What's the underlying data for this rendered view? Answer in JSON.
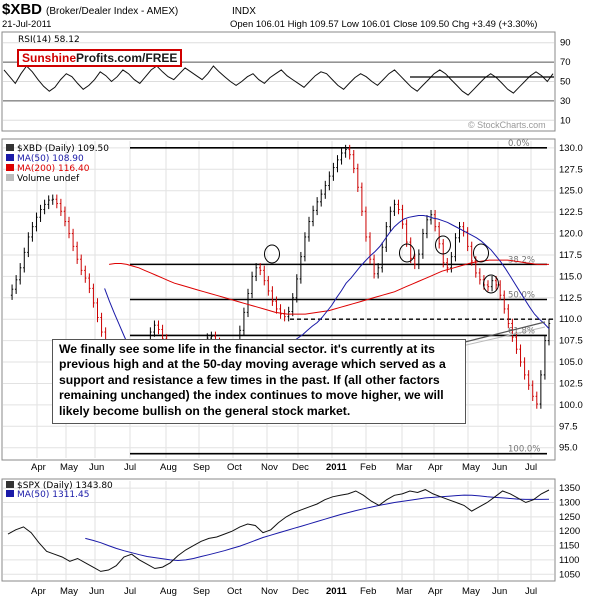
{
  "header": {
    "symbol": "$XBD",
    "name": "(Broker/Dealer Index - AMEX)",
    "exchange": "INDX",
    "date": "21-Jul-2011",
    "ohlc": "Open 106.01 High 109.57 Low 106.01 Close 109.50 Chg +3.49 (+3.30%)",
    "watermark": "© StockCharts.com"
  },
  "brand": {
    "part1": "Sunshine",
    "part2": "Profits.com/FREE"
  },
  "annotation": "We finally see some life in the financial sector. it's currently at its previous high and at the 50-day moving average which served as a support and resistance a few times in the past. If (all other factors remaining unchanged) the index continues to move higher, we will likely become bullish on the general stock market.",
  "colors": {
    "price_up": "#000000",
    "price_down": "#cc0000",
    "ma50": "#1a1aa8",
    "ma200": "#dd0000",
    "grid": "#d8d8d8",
    "panel_border": "#888888"
  },
  "chart_data": [
    {
      "panel": "RSI",
      "type": "line",
      "legend": "RSI(14) 58.12",
      "y_ticks": [
        10,
        30,
        50,
        70,
        90
      ],
      "ylim": [
        0,
        100
      ],
      "reference_lines": [
        30,
        70
      ],
      "values": [
        62,
        55,
        48,
        58,
        66,
        60,
        52,
        45,
        40,
        44,
        52,
        58,
        55,
        48,
        42,
        46,
        52,
        60,
        56,
        50,
        55,
        62,
        58,
        52,
        48,
        55,
        62,
        66,
        60,
        55,
        52,
        58,
        64,
        60,
        56,
        52,
        58,
        66,
        60,
        55,
        50,
        46,
        50,
        55,
        58,
        52,
        48,
        54,
        58,
        62,
        56,
        52,
        48,
        44,
        50,
        56,
        60,
        58,
        52,
        46,
        42,
        48,
        54,
        58,
        55,
        50,
        46,
        52,
        58,
        62,
        56,
        50,
        44,
        40,
        46,
        52,
        58,
        62,
        58,
        52,
        46,
        40,
        36,
        42,
        48,
        54,
        58,
        54,
        48,
        42,
        38,
        44,
        50,
        56,
        60,
        56,
        50,
        58
      ]
    },
    {
      "panel": "XBD",
      "type": "candlestick",
      "legend": [
        "$XBD (Daily) 109.50",
        "MA(50) 108.90",
        "MA(200) 116.40",
        "Volume undef"
      ],
      "x_ticks": [
        "Apr",
        "May",
        "Jun",
        "Jul",
        "Aug",
        "Sep",
        "Oct",
        "Nov",
        "Dec",
        "2011",
        "Feb",
        "Mar",
        "Apr",
        "May",
        "Jun",
        "Jul"
      ],
      "y_ticks": [
        95.0,
        97.5,
        100.0,
        102.5,
        105.0,
        107.5,
        110.0,
        112.5,
        115.0,
        117.5,
        120.0,
        122.5,
        125.0,
        127.5,
        130.0
      ],
      "ylim": [
        93.8,
        130.8
      ],
      "fib_labels": [
        {
          "label": "0.0%",
          "y": 130.0
        },
        {
          "label": "38.2%",
          "y": 116.4
        },
        {
          "label": "50.0%",
          "y": 112.3
        },
        {
          "label": "61.8%",
          "y": 108.1
        },
        {
          "label": "100.0%",
          "y": 94.3
        }
      ],
      "horizontal_lines": [
        130.0,
        116.4,
        112.3,
        108.1,
        94.3
      ],
      "dashed_line": 110.0,
      "closes": [
        112.8,
        113.5,
        114.6,
        116.0,
        117.8,
        119.6,
        120.8,
        121.9,
        122.8,
        123.4,
        123.9,
        124.0,
        123.5,
        122.6,
        121.4,
        120.0,
        118.5,
        117.0,
        115.7,
        114.8,
        113.6,
        111.9,
        110.2,
        108.5,
        106.6,
        104.6,
        102.8,
        101.2,
        100.0,
        99.4,
        99.3,
        99.8,
        101.2,
        103.3,
        106.2,
        108.5,
        109.3,
        108.8,
        107.7,
        106.3,
        104.9,
        103.6,
        102.3,
        101.5,
        101.4,
        102.2,
        103.8,
        105.0,
        106.6,
        107.8,
        108.0,
        107.3,
        106.0,
        104.8,
        104.6,
        105.3,
        106.8,
        108.7,
        110.8,
        113.0,
        115.0,
        116.0,
        115.7,
        114.5,
        113.3,
        112.1,
        111.2,
        110.6,
        110.3,
        110.9,
        112.5,
        114.7,
        117.3,
        119.6,
        121.4,
        122.7,
        123.7,
        124.6,
        125.6,
        126.7,
        127.7,
        128.6,
        129.4,
        129.8,
        129.2,
        127.6,
        125.4,
        122.6,
        119.6,
        117.0,
        115.3,
        116.0,
        118.4,
        120.8,
        122.6,
        123.4,
        122.8,
        121.1,
        119.0,
        117.1,
        116.4,
        117.6,
        120.0,
        121.6,
        122.2,
        120.8,
        118.8,
        116.6,
        116.0,
        117.3,
        119.5,
        120.8,
        120.2,
        118.5,
        116.8,
        115.4,
        114.6,
        114.0,
        113.8,
        114.5,
        114.0,
        112.8,
        111.2,
        109.5,
        107.9,
        106.5,
        105.0,
        103.5,
        102.3,
        101.0,
        100.1,
        103.5,
        107.5,
        109.5
      ],
      "ma50": [
        null,
        null,
        null,
        null,
        null,
        null,
        null,
        null,
        null,
        null,
        null,
        null,
        null,
        null,
        null,
        null,
        null,
        null,
        null,
        null,
        113.6,
        112.1,
        110.7,
        109.4,
        108.1,
        106.8,
        105.6,
        104.4,
        103.3,
        102.4,
        101.8,
        101.3,
        101.0,
        100.8,
        100.8,
        101.2,
        101.7,
        102.1,
        102.6,
        103.2,
        103.9,
        104.5,
        104.8,
        105.2,
        105.5,
        105.7,
        105.7,
        105.7,
        105.7,
        105.8,
        105.9,
        106.0,
        106.1,
        106.2,
        106.3,
        106.4,
        106.6,
        106.8,
        107.0,
        107.4,
        107.8,
        108.2,
        108.7,
        109.2,
        109.6,
        110.2,
        110.9,
        111.6,
        112.5,
        113.3,
        114.2,
        114.8,
        115.5,
        116.2,
        116.8,
        117.4,
        117.9,
        118.5,
        119.3,
        120.1,
        120.8,
        121.3,
        121.7,
        121.9,
        122.0,
        122.1,
        122.1,
        122.0,
        121.8,
        121.7,
        121.5,
        121.3,
        121.0,
        120.7,
        120.4,
        120.1,
        119.8,
        119.5,
        119.1,
        118.6,
        118.1,
        117.4,
        116.7,
        115.9,
        115.0,
        114.1,
        113.2,
        112.3,
        111.4,
        110.6,
        110.0,
        109.5,
        108.9
      ],
      "ma200": [
        null,
        null,
        null,
        null,
        null,
        null,
        null,
        null,
        null,
        null,
        null,
        null,
        null,
        null,
        null,
        null,
        null,
        116.4,
        116.5,
        116.5,
        116.4,
        116.2,
        116.0,
        115.7,
        115.4,
        115.1,
        114.8,
        114.5,
        114.2,
        114.0,
        113.8,
        113.6,
        113.4,
        113.2,
        113.0,
        112.8,
        112.6,
        112.4,
        112.2,
        112.0,
        111.8,
        111.6,
        111.4,
        111.2,
        111.0,
        110.8,
        110.7,
        110.6,
        110.6,
        110.6,
        110.6,
        110.7,
        110.8,
        110.9,
        111.0,
        111.2,
        111.4,
        111.6,
        111.8,
        112.0,
        112.2,
        112.4,
        112.6,
        112.8,
        113.0,
        113.2,
        113.5,
        113.8,
        114.1,
        114.4,
        114.7,
        115.0,
        115.3,
        115.6,
        115.8,
        116.0,
        116.2,
        116.4,
        116.6,
        116.7,
        116.8,
        116.9,
        116.9,
        116.9,
        116.9,
        116.8,
        116.7,
        116.6,
        116.5,
        116.4,
        116.4,
        116.4
      ]
    },
    {
      "panel": "SPX",
      "type": "line",
      "legend": [
        "$SPX (Daily) 1343.80",
        "MA(50) 1311.45"
      ],
      "x_ticks": [
        "Apr",
        "May",
        "Jun",
        "Jul",
        "Aug",
        "Sep",
        "Oct",
        "Nov",
        "Dec",
        "2011",
        "Feb",
        "Mar",
        "Apr",
        "May",
        "Jun",
        "Jul"
      ],
      "y_ticks": [
        1050,
        1100,
        1150,
        1200,
        1250,
        1300,
        1350
      ],
      "ylim": [
        1030,
        1375
      ],
      "values": [
        1190,
        1205,
        1215,
        1195,
        1160,
        1130,
        1120,
        1110,
        1095,
        1105,
        1090,
        1075,
        1060,
        1065,
        1080,
        1110,
        1120,
        1100,
        1085,
        1070,
        1075,
        1090,
        1115,
        1135,
        1150,
        1165,
        1175,
        1180,
        1190,
        1200,
        1215,
        1225,
        1220,
        1195,
        1205,
        1230,
        1250,
        1265,
        1275,
        1285,
        1295,
        1310,
        1320,
        1325,
        1330,
        1340,
        1325,
        1305,
        1290,
        1310,
        1325,
        1330,
        1340,
        1335,
        1345,
        1330,
        1320,
        1310,
        1300,
        1290,
        1270,
        1285,
        1300,
        1320,
        1340,
        1330,
        1315,
        1300,
        1310,
        1330,
        1343.8
      ],
      "ma50": [
        null,
        null,
        null,
        null,
        null,
        null,
        null,
        null,
        null,
        null,
        1175,
        1168,
        1160,
        1150,
        1140,
        1132,
        1125,
        1118,
        1112,
        1108,
        1104,
        1100,
        1098,
        1100,
        1105,
        1112,
        1118,
        1125,
        1132,
        1140,
        1148,
        1158,
        1168,
        1178,
        1186,
        1194,
        1202,
        1210,
        1218,
        1226,
        1234,
        1242,
        1250,
        1258,
        1265,
        1272,
        1278,
        1284,
        1290,
        1295,
        1300,
        1304,
        1308,
        1312,
        1316,
        1318,
        1320,
        1322,
        1324,
        1326,
        1325,
        1323,
        1320,
        1318,
        1316,
        1314,
        1312,
        1311,
        1311,
        1311,
        1311.45
      ]
    }
  ]
}
